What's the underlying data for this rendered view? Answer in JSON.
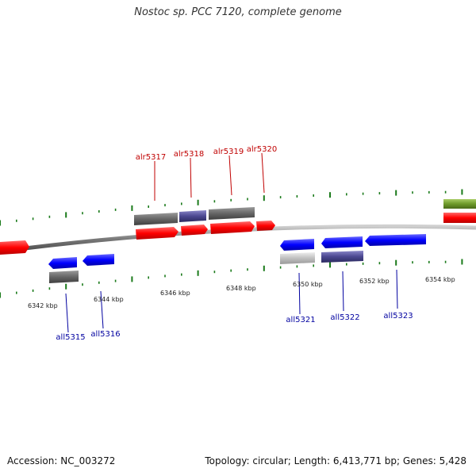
{
  "header": {
    "title": "Nostoc sp. PCC 7120, complete genome"
  },
  "footer": {
    "accession": "Accession: NC_003272",
    "summary": "Topology: circular; Length: 6,413,771 bp; Genes: 5,428"
  },
  "colors": {
    "forward_cds": "#ff0000",
    "reverse_cds": "#0000ff",
    "gene_gray": "#666666",
    "gene_purple": "#4b4890",
    "gene_lightgray": "#c0c0c0",
    "gene_olive": "#6e9a2a",
    "forward_label": "#c00000",
    "reverse_label": "#0000a0",
    "tick": "#1a7a1a",
    "backbone": "#8a8a8a"
  },
  "chart_data": {
    "type": "genome-map",
    "kbp_labels": [
      "6342 kbp",
      "6344 kbp",
      "6346 kbp",
      "6348 kbp",
      "6350 kbp",
      "6352 kbp",
      "6354 kbp"
    ],
    "forward_genes": [
      "alr5317",
      "alr5318",
      "alr5319",
      "alr5320"
    ],
    "reverse_genes": [
      "all5315",
      "all5316",
      "all5321",
      "all5322",
      "all5323"
    ]
  }
}
